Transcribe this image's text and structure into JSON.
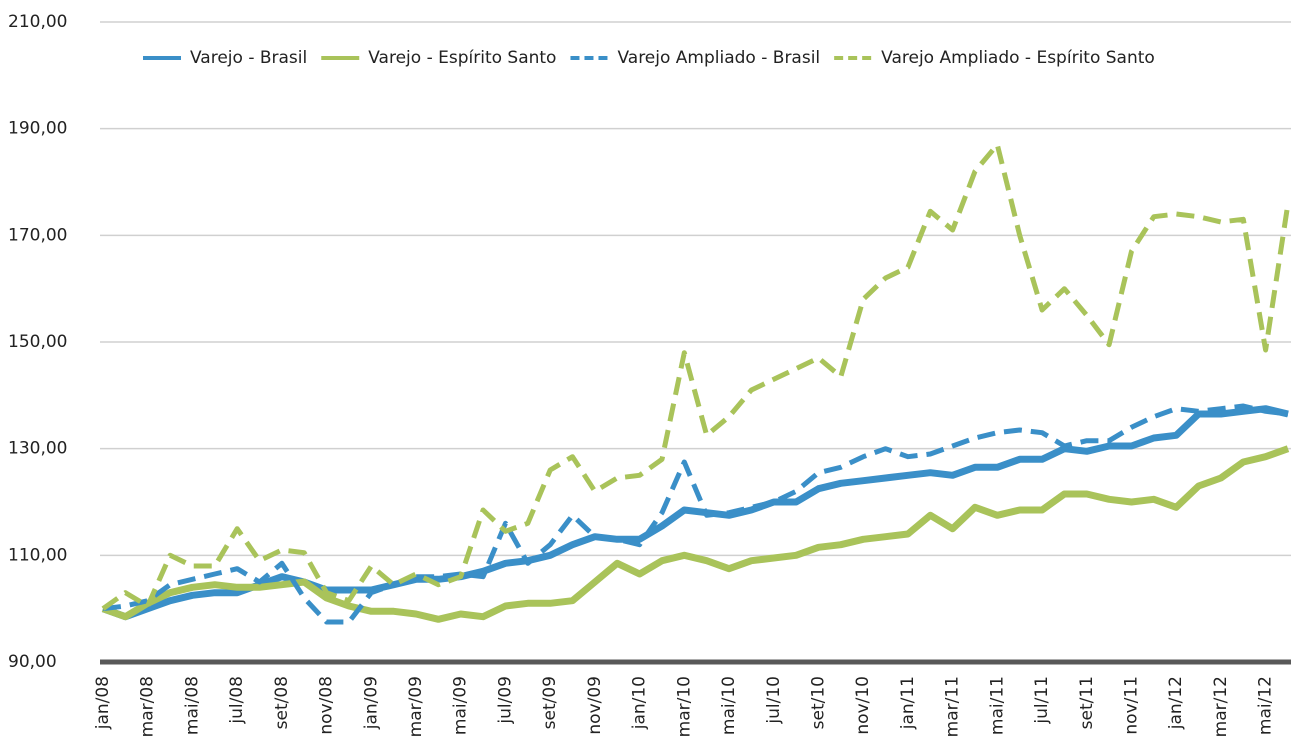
{
  "chart_data": {
    "type": "line",
    "categories": [
      "jan/08",
      null,
      "mar/08",
      null,
      "mai/08",
      null,
      "jul/08",
      null,
      "set/08",
      null,
      "nov/08",
      null,
      "jan/09",
      null,
      "mar/09",
      null,
      "mai/09",
      null,
      "jul/09",
      null,
      "set/09",
      null,
      "nov/09",
      null,
      "jan/10",
      null,
      "mar/10",
      null,
      "mai/10",
      null,
      "jul/10",
      null,
      "set/10",
      null,
      "nov/10",
      null,
      "jan/11",
      null,
      "mar/11",
      null,
      "mai/11",
      null,
      "jul/11",
      null,
      "set/11",
      null,
      "nov/11",
      null,
      "jan/12",
      null,
      "mar/12",
      null,
      "mai/12",
      null
    ],
    "series": [
      {
        "name": "Varejo - Brasil",
        "color": "#3a8fc8",
        "style": "solid",
        "values": [
          100,
          98.5,
          100,
          101.5,
          102.5,
          103,
          103,
          104.5,
          106,
          105,
          103.5,
          103.5,
          103.5,
          104.5,
          105.5,
          105.5,
          106,
          107,
          108.5,
          109,
          110,
          112,
          113.5,
          113,
          113,
          115.5,
          118.5,
          118,
          117.5,
          118.5,
          120,
          120,
          122.5,
          123.5,
          124,
          124.5,
          125,
          125.5,
          125,
          126.5,
          126.5,
          128,
          128,
          130,
          129.5,
          130.5,
          130.5,
          132,
          132.5,
          136.5,
          136.5,
          137,
          137.5,
          136.5
        ]
      },
      {
        "name": "Varejo - Espírito Santo",
        "color": "#a9c35a",
        "style": "solid",
        "values": [
          100,
          98.5,
          101,
          103,
          104,
          104.5,
          104,
          104,
          104.5,
          105,
          102,
          100.5,
          99.5,
          99.5,
          99,
          98,
          99,
          98.5,
          100.5,
          101,
          101,
          101.5,
          105,
          108.5,
          106.5,
          109,
          110,
          109,
          107.5,
          109,
          109.5,
          110,
          111.5,
          112,
          113,
          113.5,
          114,
          117.5,
          115,
          119,
          117.5,
          118.5,
          118.5,
          121.5,
          121.5,
          120.5,
          120,
          120.5,
          119,
          123,
          124.5,
          127.5,
          128.5,
          130
        ]
      },
      {
        "name": "Varejo Ampliado - Brasil",
        "color": "#3a8fc8",
        "style": "dashed",
        "values": [
          100,
          100.5,
          101.5,
          104.5,
          105.5,
          106.5,
          107.5,
          105,
          108.5,
          102,
          97.5,
          97.5,
          103,
          104.5,
          106,
          106,
          106.5,
          106,
          116,
          108.5,
          112,
          117.5,
          113.5,
          113,
          112,
          118,
          127.5,
          117.5,
          118,
          119,
          120,
          122,
          125.5,
          126.5,
          128.5,
          130,
          128.5,
          129,
          130.5,
          132,
          133,
          133.5,
          133,
          130.5,
          131.5,
          131.5,
          134,
          136,
          137.5,
          137,
          137.5,
          138,
          137,
          136.5
        ]
      },
      {
        "name": "Varejo Ampliado - Espírito Santo",
        "color": "#a9c35a",
        "style": "dashed",
        "values": [
          100,
          103,
          100.5,
          110,
          108,
          108,
          115,
          109,
          111,
          110.5,
          103,
          101.5,
          108,
          104.5,
          106.5,
          104.5,
          106,
          118.5,
          114.5,
          116,
          126,
          128.5,
          122,
          124.5,
          125,
          128,
          148,
          132.5,
          136,
          141,
          143,
          145,
          147,
          143.5,
          158,
          162,
          164,
          174.5,
          171,
          182,
          187,
          170,
          156,
          160,
          155,
          149.5,
          167,
          173.5,
          174,
          173.5,
          172.5,
          173,
          148.5,
          176
        ]
      }
    ],
    "ylim": [
      90,
      210
    ],
    "yticks": [
      {
        "value": 90,
        "label": "90,00"
      },
      {
        "value": 110,
        "label": "110,00"
      },
      {
        "value": 130,
        "label": "130,00"
      },
      {
        "value": 150,
        "label": "150,00"
      },
      {
        "value": 170,
        "label": "170,00"
      },
      {
        "value": 190,
        "label": "190,00"
      },
      {
        "value": 210,
        "label": "210,00"
      }
    ],
    "grid": true,
    "legend": "top"
  }
}
